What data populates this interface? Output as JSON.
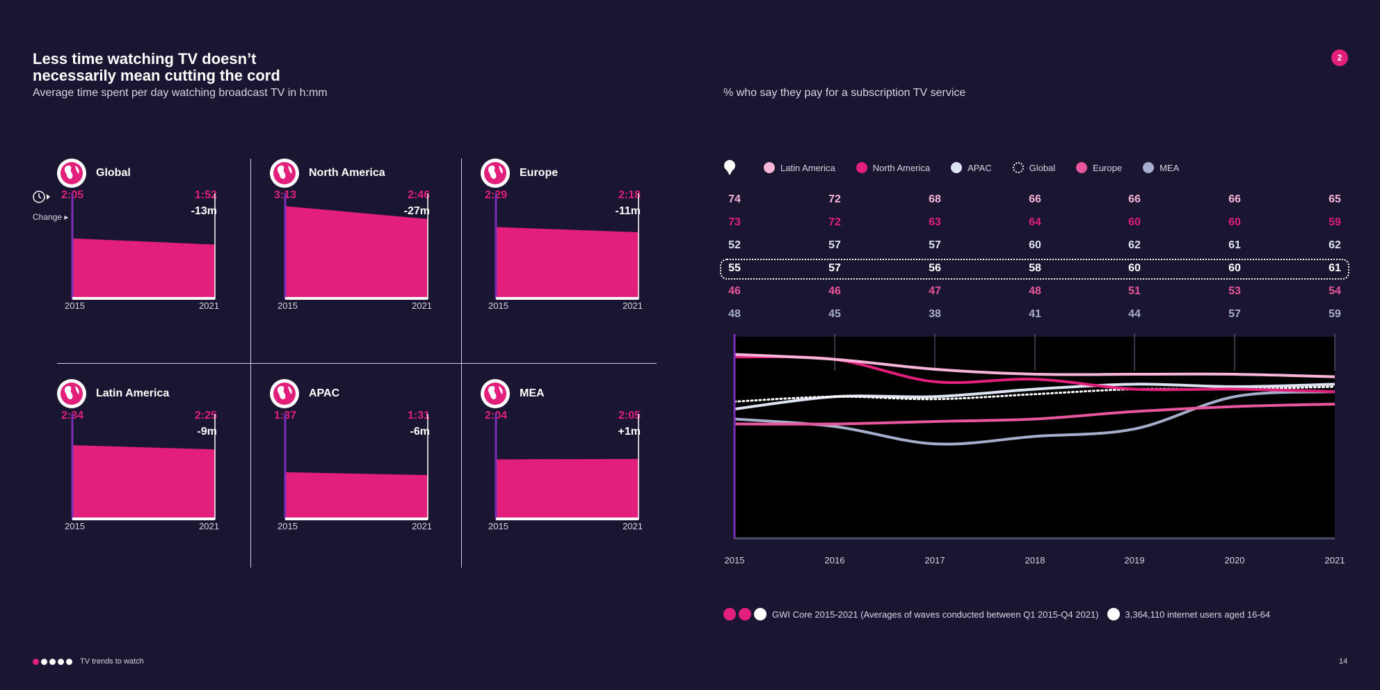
{
  "header": {
    "title_line1": "Less time watching TV doesn’t",
    "title_line2": "necessarily mean cutting the cord",
    "subtitle_left": "Average time spent per day watching broadcast TV in h:mm",
    "subtitle_right": "% who say they pay for a subscription TV service",
    "badge": "2"
  },
  "change_legend": {
    "label": "Change"
  },
  "panels": [
    {
      "name": "Global",
      "start": "2:05",
      "end": "1:52",
      "change": "-13m",
      "x_start": "2015",
      "x_end": "2021"
    },
    {
      "name": "North America",
      "start": "3:13",
      "end": "2:46",
      "change": "-27m",
      "x_start": "2015",
      "x_end": "2021"
    },
    {
      "name": "Europe",
      "start": "2:29",
      "end": "2:18",
      "change": "-11m",
      "x_start": "2015",
      "x_end": "2021"
    },
    {
      "name": "Latin America",
      "start": "2:34",
      "end": "2:25",
      "change": "-9m",
      "x_start": "2015",
      "x_end": "2021"
    },
    {
      "name": "APAC",
      "start": "1:37",
      "end": "1:31",
      "change": "-6m",
      "x_start": "2015",
      "x_end": "2021"
    },
    {
      "name": "MEA",
      "start": "2:04",
      "end": "2:05",
      "change": "+1m",
      "x_start": "2015",
      "x_end": "2021"
    }
  ],
  "legend": {
    "items": [
      {
        "label": "Latin America",
        "color": "#f7b6d9"
      },
      {
        "label": "North America",
        "color": "#e21f7b"
      },
      {
        "label": "APAC",
        "color": "#dfe4f4"
      },
      {
        "label": "Global",
        "color": "#ffffff"
      },
      {
        "label": "Europe",
        "color": "#e8569d"
      },
      {
        "label": "MEA",
        "color": "#a6aecb"
      }
    ]
  },
  "source": {
    "text1": "GWI Core 2015-2021 (Averages of waves conducted between Q1 2015-Q4 2021)",
    "text2": "3,364,110 internet users aged 16-64"
  },
  "footer": {
    "text": "TV trends to watch",
    "page": "14"
  },
  "chart_data": [
    {
      "type": "area",
      "title": "Average time spent per day watching broadcast TV in h:mm",
      "categories": [
        "2015",
        "2021"
      ],
      "unit": "minutes per day",
      "series": [
        {
          "name": "Global",
          "values": [
            125,
            112
          ]
        },
        {
          "name": "North America",
          "values": [
            193,
            166
          ]
        },
        {
          "name": "Europe",
          "values": [
            149,
            138
          ]
        },
        {
          "name": "Latin America",
          "values": [
            154,
            145
          ]
        },
        {
          "name": "APAC",
          "values": [
            97,
            91
          ]
        },
        {
          "name": "MEA",
          "values": [
            124,
            125
          ]
        }
      ],
      "ylim": [
        0,
        220
      ]
    },
    {
      "type": "line",
      "title": "% who say they pay for a subscription TV service",
      "categories": [
        "2015",
        "2016",
        "2017",
        "2018",
        "2019",
        "2020",
        "2021"
      ],
      "ylim": [
        0,
        80
      ],
      "series": [
        {
          "name": "Latin America",
          "color": "#f7b6d9",
          "values": [
            74,
            72,
            68,
            66,
            66,
            66,
            65
          ]
        },
        {
          "name": "North America",
          "color": "#e21f7b",
          "values": [
            73,
            72,
            63,
            64,
            60,
            60,
            59
          ]
        },
        {
          "name": "APAC",
          "color": "#dfe4f4",
          "values": [
            52,
            57,
            57,
            60,
            62,
            61,
            62
          ]
        },
        {
          "name": "Global",
          "color": "#ffffff",
          "values": [
            55,
            57,
            56,
            58,
            60,
            60,
            61
          ]
        },
        {
          "name": "Europe",
          "color": "#e8569d",
          "values": [
            46,
            46,
            47,
            48,
            51,
            53,
            54
          ]
        },
        {
          "name": "MEA",
          "color": "#a6aecb",
          "values": [
            48,
            45,
            38,
            41,
            44,
            57,
            59
          ]
        }
      ]
    }
  ]
}
